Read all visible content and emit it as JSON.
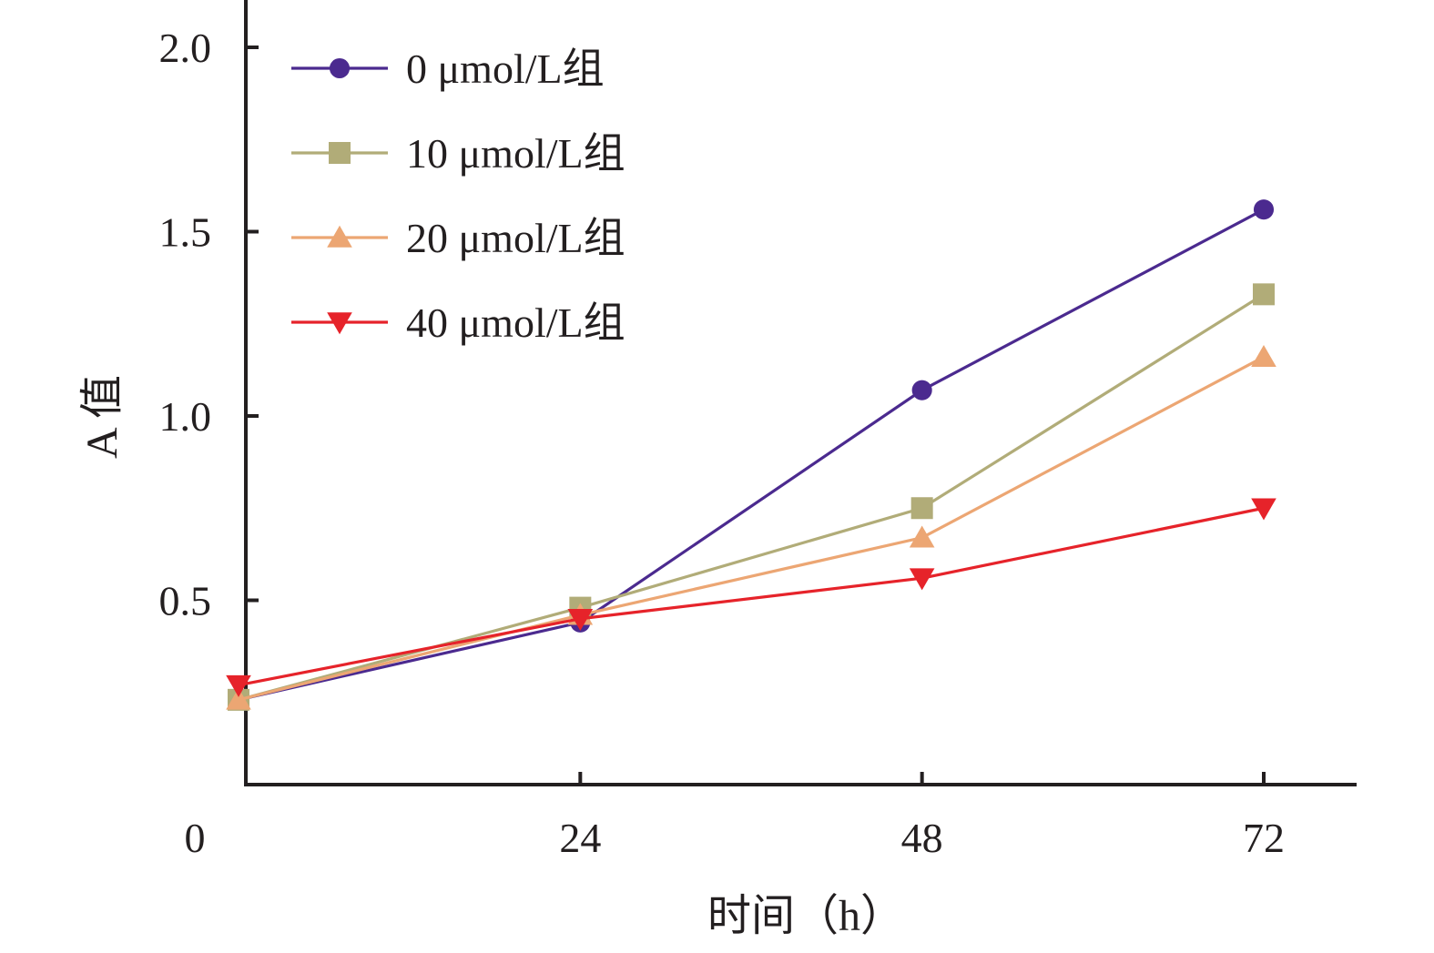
{
  "chart_data": {
    "type": "line",
    "xlabel": "时间（h）",
    "ylabel": "A 值",
    "x": [
      0,
      24,
      48,
      72
    ],
    "x_tick_labels": [
      "0",
      "24",
      "48",
      "72"
    ],
    "y_ticks": [
      0.5,
      1.0,
      1.5,
      2.0
    ],
    "y_tick_labels": [
      "0.5",
      "1.0",
      "1.5",
      "2.0"
    ],
    "ylim": [
      0.0,
      2.1
    ],
    "grid": false,
    "legend_position": "top-left",
    "series": [
      {
        "name": "0 μmol/L组",
        "marker": "circle",
        "color": "#4b2a8f",
        "values": [
          0.23,
          0.44,
          1.07,
          1.56
        ]
      },
      {
        "name": "10 μmol/L组",
        "marker": "square",
        "color": "#b1ac78",
        "values": [
          0.23,
          0.48,
          0.75,
          1.33
        ]
      },
      {
        "name": "20 μmol/L组",
        "marker": "triangle-up",
        "color": "#eca673",
        "values": [
          0.23,
          0.46,
          0.67,
          1.16
        ]
      },
      {
        "name": "40 μmol/L组",
        "marker": "triangle-down",
        "color": "#e6232a",
        "values": [
          0.27,
          0.45,
          0.56,
          0.75
        ]
      }
    ]
  }
}
